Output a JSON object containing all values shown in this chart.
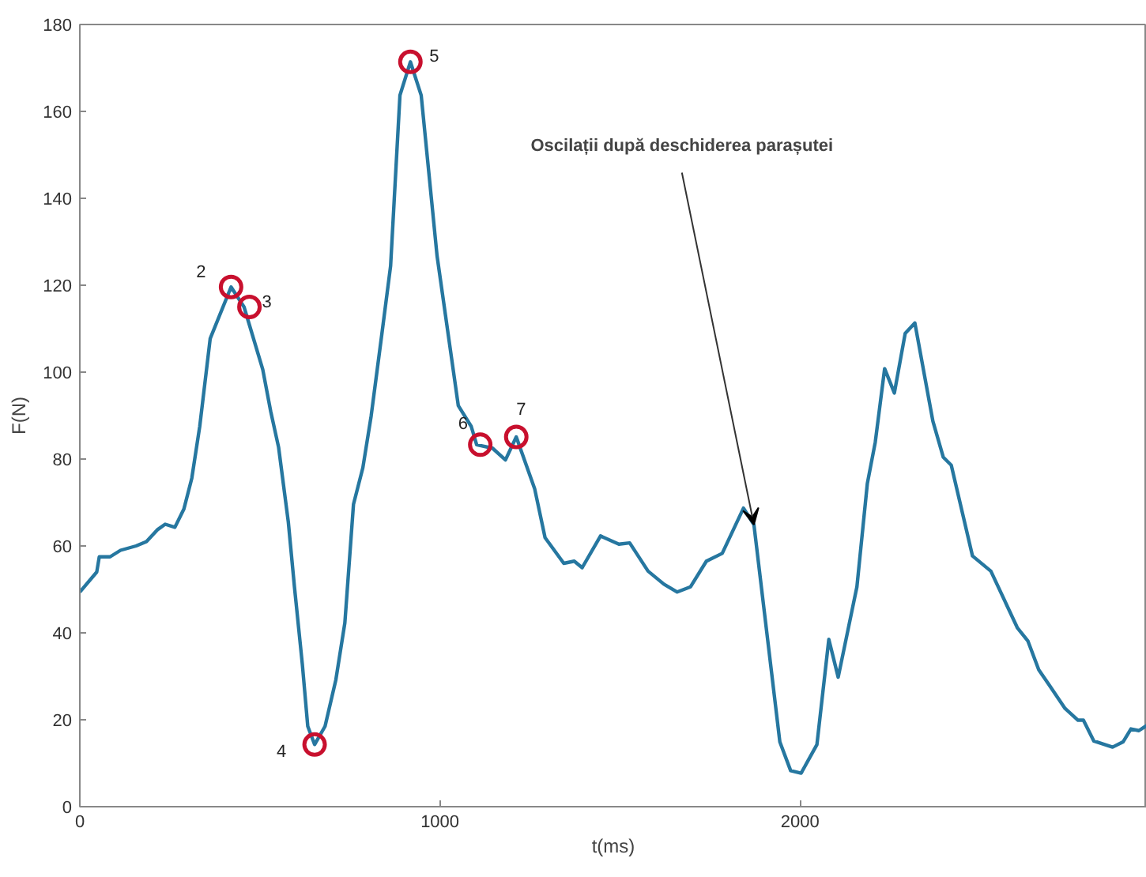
{
  "chart_data": {
    "type": "line",
    "xlabel": "t(ms)",
    "ylabel": "F(N)",
    "xlim": [
      0,
      2963
    ],
    "ylim": [
      0,
      180
    ],
    "xticks": [
      0,
      1000,
      2000
    ],
    "yticks": [
      0,
      20,
      40,
      60,
      80,
      100,
      120,
      140,
      160,
      180
    ],
    "grid": false,
    "annotations": [
      {
        "text": "Oscilații după deschiderea parașutei",
        "x": 1872,
        "y": 64.9
      },
      {
        "text": "2",
        "x": 420,
        "y": 119.6
      },
      {
        "text": "3",
        "x": 471,
        "y": 115
      },
      {
        "text": "4",
        "x": 652,
        "y": 14.3
      },
      {
        "text": "5",
        "x": 918,
        "y": 171.4
      },
      {
        "text": "6",
        "x": 1112,
        "y": 83.3
      },
      {
        "text": "7",
        "x": 1212,
        "y": 85.1
      }
    ],
    "series": [
      {
        "color": "#2677a0",
        "marker": "none",
        "line_style": "solid",
        "x": [
          0,
          47,
          54,
          84,
          113,
          156,
          185,
          215,
          237,
          264,
          289,
          311,
          333,
          362,
          420,
          456,
          508,
          530,
          552,
          579,
          596,
          618,
          633,
          652,
          681,
          711,
          736,
          760,
          786,
          809,
          838,
          863,
          889,
          918,
          948,
          992,
          1051,
          1087,
          1102,
          1146,
          1182,
          1212,
          1263,
          1292,
          1344,
          1373,
          1395,
          1446,
          1497,
          1527,
          1578,
          1622,
          1659,
          1696,
          1740,
          1784,
          1843,
          1872,
          1908,
          1944,
          1974,
          2003,
          2047,
          2080,
          2106,
          2158,
          2187,
          2209,
          2235,
          2262,
          2292,
          2319,
          2369,
          2398,
          2420,
          2479,
          2530,
          2604,
          2633,
          2663,
          2692,
          2736,
          2772,
          2787,
          2816,
          2868,
          2897,
          2919,
          2941,
          2963
        ],
        "values": [
          49.4,
          54,
          57.5,
          57.5,
          59,
          60,
          61,
          63.7,
          65,
          64.3,
          68.5,
          75.6,
          87.5,
          107.7,
          119.6,
          115,
          100.6,
          91,
          82.7,
          65.5,
          50.6,
          32.7,
          18.5,
          14.3,
          18.5,
          29.2,
          42.3,
          69.6,
          78,
          89.9,
          108.3,
          124.4,
          163.7,
          171.4,
          163.7,
          126.8,
          92.3,
          87.5,
          83.3,
          82.5,
          79.8,
          85.1,
          73.2,
          61.9,
          56,
          56.5,
          55,
          62.3,
          60.4,
          60.7,
          54.2,
          51.2,
          49.4,
          50.6,
          56.5,
          58.3,
          68.7,
          64.9,
          39.9,
          14.9,
          8.3,
          7.7,
          14.3,
          38.5,
          29.8,
          50.6,
          74.4,
          83.9,
          100.8,
          95.2,
          108.9,
          111.3,
          88.7,
          80.4,
          78.6,
          57.7,
          54.2,
          41.1,
          38.1,
          31.5,
          28,
          22.6,
          19.9,
          19.9,
          15.1,
          13.7,
          14.9,
          17.9,
          17.5,
          18.7
        ]
      },
      {
        "type": "scatter",
        "color": "#c8102e",
        "marker": "circle",
        "x": [
          420,
          471,
          652,
          918,
          1112,
          1212
        ],
        "values": [
          119.6,
          115,
          14.3,
          171.4,
          83.3,
          85.1
        ]
      }
    ]
  }
}
